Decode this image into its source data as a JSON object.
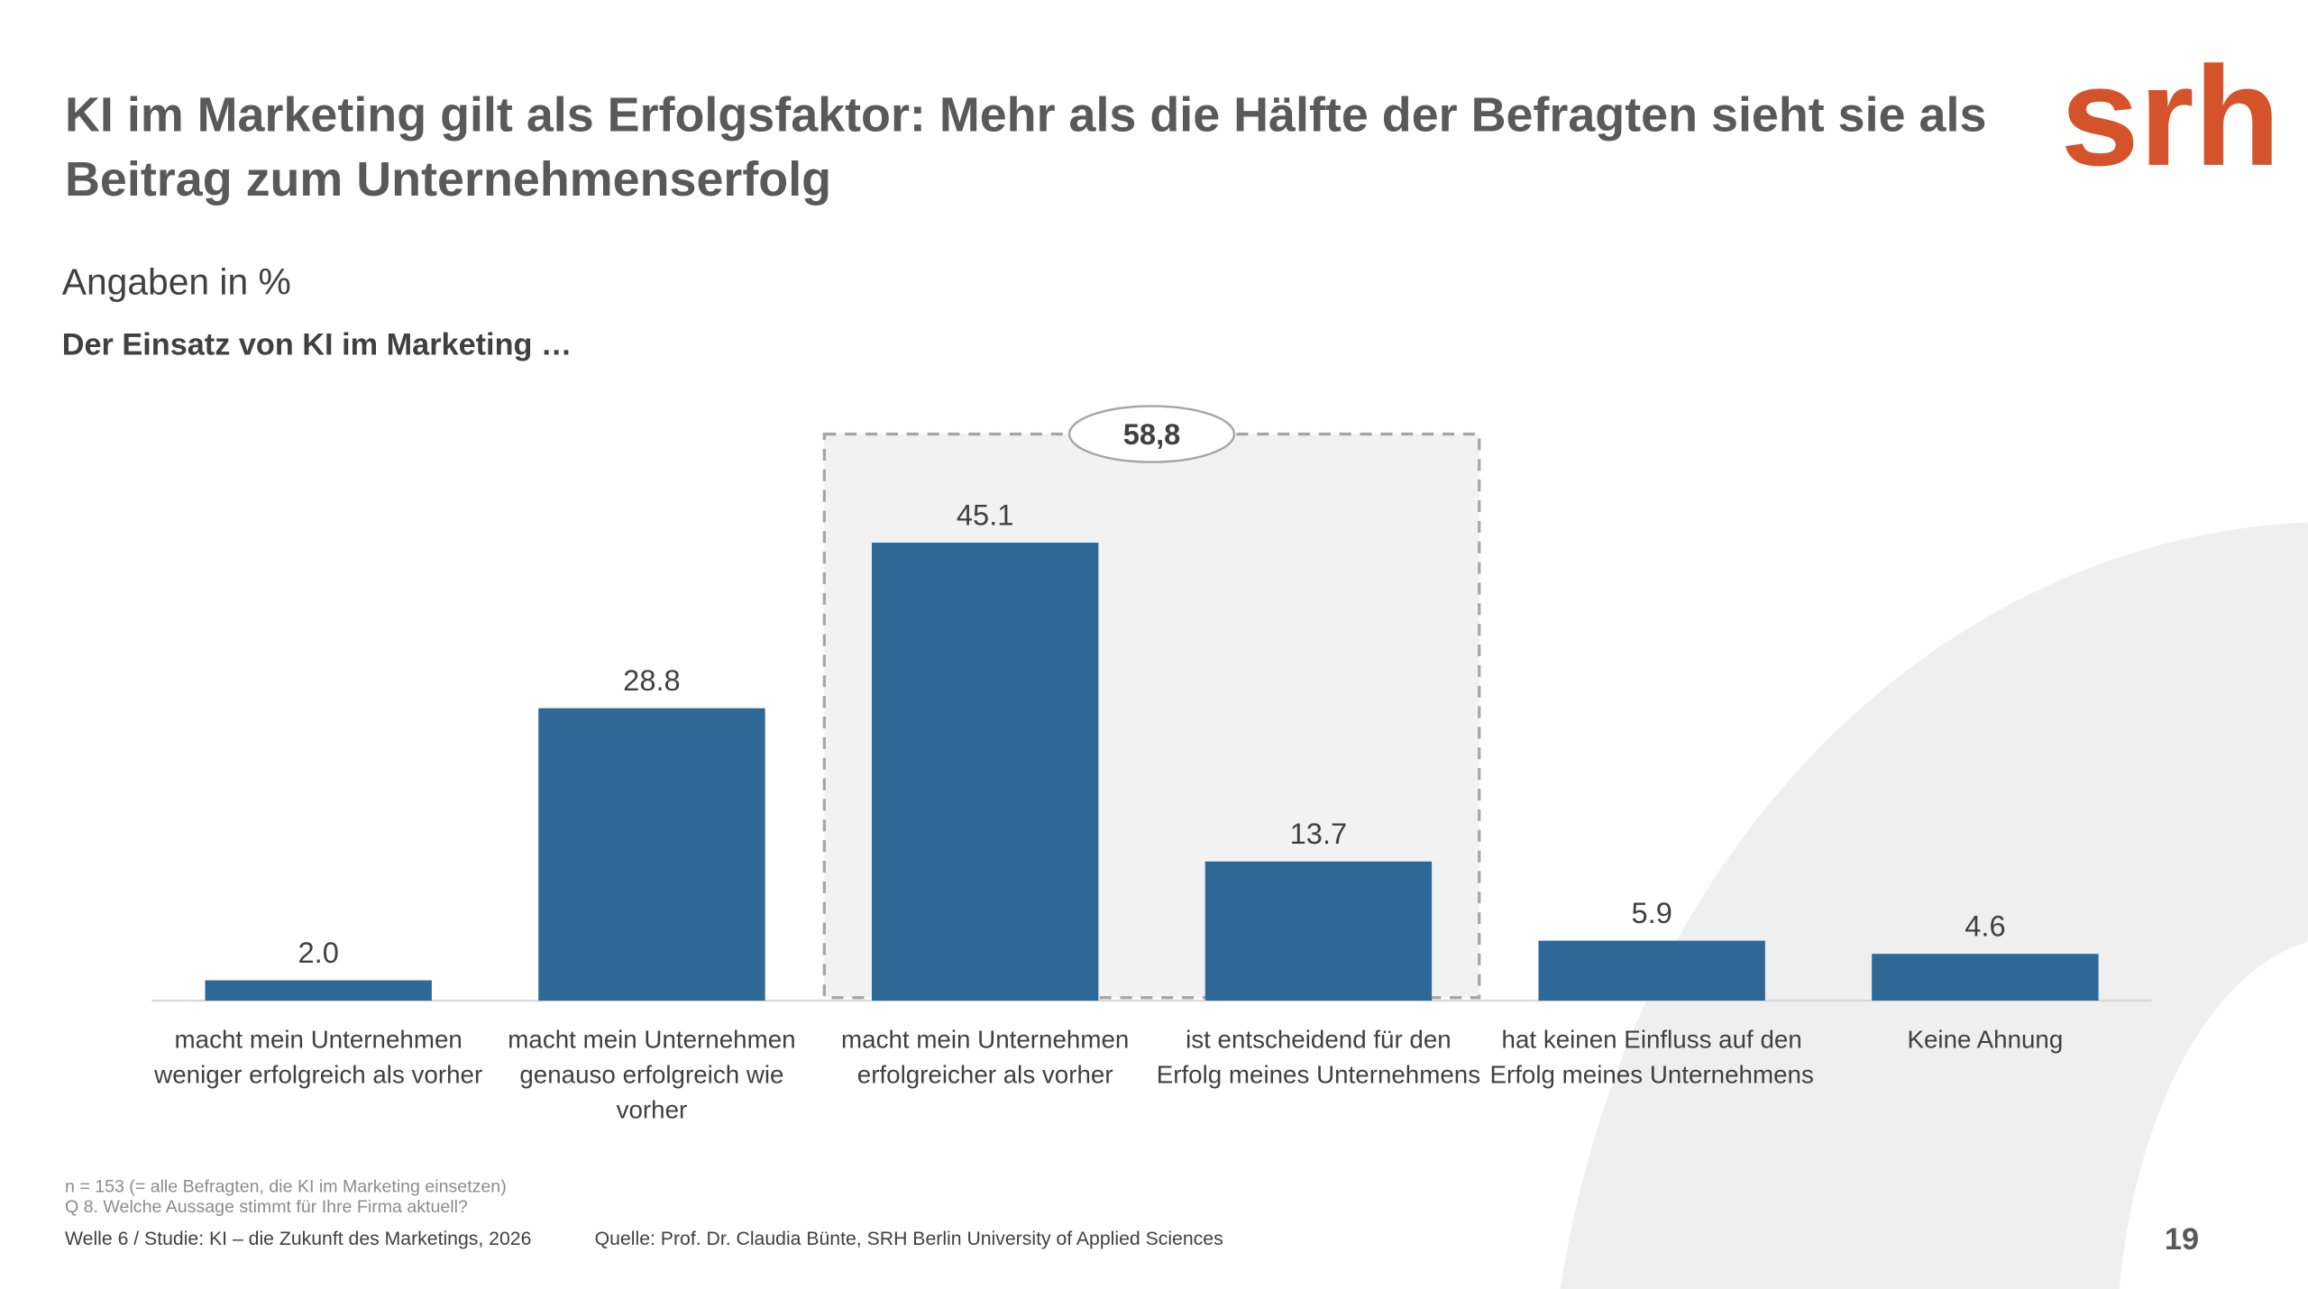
{
  "header": {
    "title": "KI im Marketing gilt als Erfolgsfaktor: Mehr als die Hälfte der Befragten sieht sie als Beitrag zum Unternehmenserfolg",
    "logo": "srh"
  },
  "chart_data": {
    "type": "bar",
    "subtitle": "Angaben in %",
    "question": "Der Einsatz von KI im Marketing …",
    "categories": [
      "macht mein Unternehmen weniger erfolgreich als vorher",
      "macht mein Unternehmen genauso erfolgreich wie vorher",
      "macht mein Unternehmen erfolgreicher als vorher",
      "ist entscheidend für den Erfolg meines Unternehmens",
      "hat keinen Einfluss auf den Erfolg meines Unternehmens",
      "Keine Ahnung"
    ],
    "values": [
      2.0,
      28.8,
      45.1,
      13.7,
      5.9,
      4.6
    ],
    "value_labels": [
      "2.0",
      "28.8",
      "45.1",
      "13.7",
      "5.9",
      "4.6"
    ],
    "color": "#2e6896",
    "ylim": [
      0,
      50
    ],
    "bracket": {
      "value": 58.8,
      "label": "58,8",
      "from": 2,
      "to": 3
    }
  },
  "footer": {
    "notes": [
      "n = 153 (= alle Befragten, die KI im Marketing einsetzen)",
      "Q 8.  Welche Aussage stimmt für Ihre Firma aktuell?"
    ],
    "study": "Welle 6 / Studie: KI – die Zukunft des Marketings, 2026",
    "source": "Quelle: Prof. Dr. Claudia Bünte, SRH Berlin University of Applied Sciences",
    "page": "19"
  }
}
